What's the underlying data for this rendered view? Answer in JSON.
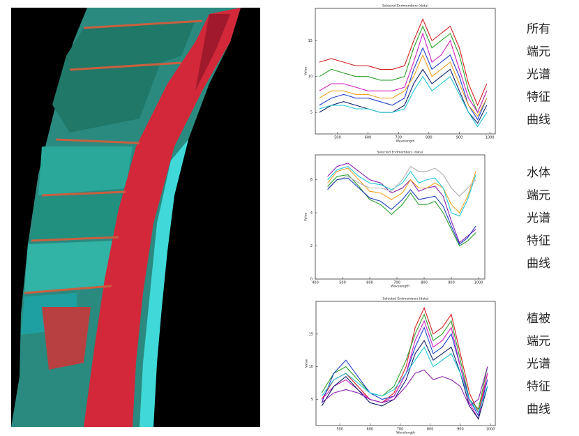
{
  "chart_data": [
    {
      "type": "line",
      "title": "Selected Endmembers (data)",
      "x_label": "Wavelength",
      "y_label": "Value",
      "x": [
        440,
        480,
        520,
        560,
        600,
        640,
        680,
        720,
        750,
        780,
        810,
        840,
        870,
        900,
        930,
        960,
        990
      ],
      "xlim": [
        427,
        1018
      ],
      "xticks": [
        500,
        600,
        700,
        800,
        900,
        1000
      ],
      "ylim": [
        2,
        19.5
      ],
      "yticks": [
        5,
        10,
        15
      ],
      "series": [
        {
          "color": "#d62020",
          "values": [
            12,
            12.5,
            12,
            11.5,
            11.5,
            11,
            11,
            11.5,
            15,
            18,
            15,
            16,
            17,
            14,
            9,
            6,
            9
          ]
        },
        {
          "color": "#2ca02c",
          "values": [
            10,
            11,
            10.5,
            10,
            10,
            9.5,
            9.5,
            10,
            14,
            17,
            14,
            15,
            16,
            13,
            8,
            5,
            8
          ]
        },
        {
          "color": "#1f3fd0",
          "values": [
            6,
            7,
            7.5,
            7,
            7,
            6.5,
            6,
            7,
            11,
            14,
            11,
            12,
            13,
            10,
            6,
            4,
            7
          ]
        },
        {
          "color": "#d020c0",
          "values": [
            8,
            9,
            9,
            8.5,
            8,
            8,
            8,
            8.5,
            12,
            16,
            12,
            13,
            15,
            11,
            7,
            5,
            8
          ]
        },
        {
          "color": "#10206a",
          "values": [
            5,
            6,
            6.5,
            6,
            5.5,
            5,
            5,
            6,
            9,
            11,
            9,
            10,
            11,
            8,
            5,
            3.5,
            6
          ]
        },
        {
          "color": "#f0a020",
          "values": [
            7,
            8,
            8,
            7.5,
            7.5,
            7,
            7,
            8,
            10,
            13,
            10,
            11,
            12,
            9,
            6,
            4.5,
            7
          ]
        },
        {
          "color": "#20c8d8",
          "values": [
            5.5,
            6,
            6,
            5.5,
            5.5,
            5,
            5,
            5.5,
            8,
            10,
            8,
            9,
            10,
            7.5,
            5,
            3,
            5
          ]
        }
      ]
    },
    {
      "type": "line",
      "title": "Selected Endmembers (data)",
      "x_label": "Wavelength",
      "y_label": "Value",
      "x": [
        445,
        480,
        520,
        560,
        600,
        640,
        680,
        720,
        750,
        780,
        810,
        840,
        870,
        900,
        930,
        960,
        990
      ],
      "xlim": [
        400,
        1023
      ],
      "xticks": [
        400,
        500,
        600,
        700,
        800,
        900,
        1000
      ],
      "ylim": [
        0,
        7.5
      ],
      "yticks": [
        0,
        2,
        4,
        6
      ],
      "series": [
        {
          "color": "#8a1fb0",
          "values": [
            6.2,
            6.8,
            7,
            6.5,
            6,
            5.8,
            5.2,
            5.5,
            6,
            5.3,
            5.5,
            5.6,
            5,
            3.5,
            2.2,
            2.6,
            3
          ]
        },
        {
          "color": "#2ca02c",
          "values": [
            5.6,
            6.2,
            6.3,
            5.6,
            4.8,
            4.5,
            3.9,
            4.5,
            5.2,
            4.5,
            4.5,
            4.7,
            4,
            3,
            2,
            2.3,
            2.8
          ]
        },
        {
          "color": "#f0a020",
          "values": [
            5.8,
            6.5,
            6.7,
            6,
            5.3,
            5.2,
            4.8,
            5.2,
            6,
            5.5,
            5.5,
            5.8,
            5.5,
            4.5,
            4,
            5,
            6.5
          ]
        },
        {
          "color": "#20c8d8",
          "values": [
            6,
            6.6,
            6.8,
            6.2,
            5.8,
            5.7,
            5.4,
            5.8,
            6.5,
            5.8,
            6,
            6.1,
            5.5,
            4,
            3.8,
            4.8,
            6.3
          ]
        },
        {
          "color": "#b0b0b0",
          "values": [
            5.5,
            6,
            6.2,
            5.8,
            5.5,
            5.5,
            5.3,
            6,
            6.8,
            6.5,
            6.5,
            6.7,
            6.3,
            5.5,
            5,
            5.5,
            6
          ]
        },
        {
          "color": "#2040c0",
          "values": [
            5.4,
            6,
            6.1,
            5.5,
            4.9,
            4.7,
            4.2,
            4.8,
            5.4,
            4.8,
            4.9,
            5,
            4.4,
            3.2,
            2.1,
            2.5,
            3.2
          ]
        }
      ]
    },
    {
      "type": "line",
      "title": "Selected Endmembers (data)",
      "x_label": "Wavelength",
      "y_label": "Value",
      "x": [
        440,
        480,
        520,
        560,
        600,
        640,
        680,
        720,
        750,
        780,
        810,
        840,
        870,
        900,
        930,
        960,
        990
      ],
      "xlim": [
        421,
        1016
      ],
      "xticks": [
        500,
        600,
        700,
        800,
        900,
        1000
      ],
      "ylim": [
        1,
        20
      ],
      "yticks": [
        5,
        10,
        15
      ],
      "series": [
        {
          "color": "#d62020",
          "values": [
            5,
            8,
            9,
            7,
            5,
            4.5,
            6,
            10,
            16,
            19,
            15,
            16,
            18,
            12,
            6,
            3,
            9
          ]
        },
        {
          "color": "#2ca02c",
          "values": [
            6,
            9,
            10,
            8,
            6,
            5.5,
            7,
            11,
            15,
            18,
            14,
            15,
            17,
            11,
            5,
            3.5,
            10
          ]
        },
        {
          "color": "#1f3fd0",
          "values": [
            4.5,
            9,
            11,
            8.5,
            6,
            5,
            5.5,
            9,
            13,
            16,
            12,
            13,
            15,
            10,
            5,
            2.5,
            8
          ]
        },
        {
          "color": "#d020c0",
          "values": [
            5,
            7,
            8,
            6.5,
            5,
            4.5,
            5.5,
            9,
            14,
            17,
            13,
            14,
            16,
            10,
            4.5,
            2,
            9
          ]
        },
        {
          "color": "#10206a",
          "values": [
            4,
            7,
            8.5,
            6.5,
            4.5,
            4,
            5,
            8,
            12,
            14,
            11,
            12,
            13,
            9,
            4,
            2,
            7
          ]
        },
        {
          "color": "#20c8d8",
          "values": [
            5.5,
            8,
            9,
            7.5,
            6,
            5.5,
            6.5,
            9,
            11,
            13,
            10,
            11,
            12,
            9,
            5,
            3,
            7
          ]
        },
        {
          "color": "#8a1fb0",
          "values": [
            4.5,
            6,
            6.5,
            6,
            5,
            4.5,
            5,
            7,
            9,
            9.5,
            8,
            8.5,
            8,
            7,
            4,
            5,
            10
          ]
        }
      ]
    }
  ],
  "side_labels": [
    [
      "所有",
      "端元",
      "光谱",
      "特征",
      "曲线"
    ],
    [
      "水体",
      "端元",
      "光谱",
      "特征",
      "曲线"
    ],
    [
      "植被",
      "端元",
      "光谱",
      "特征",
      "曲线"
    ]
  ]
}
